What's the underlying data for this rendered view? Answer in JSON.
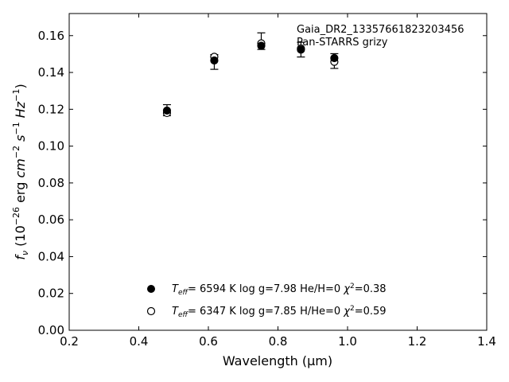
{
  "chart_data": {
    "type": "scatter",
    "xlabel": "Wavelength (μm)",
    "ylabel_parts": {
      "f": "f",
      "nu": "ν",
      "open": " (10",
      "exp1": "−26",
      "erg": " erg ",
      "cm": "cm",
      "exp2": "−2",
      "s": " s",
      "exp3": "−1",
      "hz": " Hz",
      "exp4": "−1",
      "close": ")"
    },
    "xlim": [
      0.2,
      1.4
    ],
    "ylim": [
      0.0,
      0.172
    ],
    "xticks": [
      0.2,
      0.4,
      0.6,
      0.8,
      1.0,
      1.2,
      1.4
    ],
    "xtick_labels": [
      "0.2",
      "0.4",
      "0.6",
      "0.8",
      "1.0",
      "1.2",
      "1.4"
    ],
    "yticks": [
      0.0,
      0.02,
      0.04,
      0.06,
      0.08,
      0.1,
      0.12,
      0.14,
      0.16
    ],
    "ytick_labels": [
      "0.00",
      "0.02",
      "0.04",
      "0.06",
      "0.08",
      "0.10",
      "0.12",
      "0.14",
      "0.16"
    ],
    "grid": false,
    "annotations": [
      "Gaia_DR2_13357661823203456",
      "Pan-STARRS grizy"
    ],
    "observed": [
      {
        "x": 0.481,
        "y": 0.1195,
        "err": 0.003
      },
      {
        "x": 0.617,
        "y": 0.1457,
        "err": 0.004
      },
      {
        "x": 0.752,
        "y": 0.157,
        "err": 0.0045
      },
      {
        "x": 0.866,
        "y": 0.1524,
        "err": 0.004
      },
      {
        "x": 0.962,
        "y": 0.1462,
        "err": 0.004
      }
    ],
    "series": [
      {
        "marker": "filled",
        "x": [
          0.481,
          0.617,
          0.752,
          0.866,
          0.962
        ],
        "y": [
          0.1193,
          0.1465,
          0.1545,
          0.1524,
          0.1478
        ]
      },
      {
        "marker": "open",
        "x": [
          0.481,
          0.617,
          0.752,
          0.866,
          0.962
        ],
        "y": [
          0.118,
          0.1485,
          0.1558,
          0.153,
          0.1458
        ]
      }
    ],
    "legend": {
      "placement": "lower-center",
      "entries": [
        {
          "marker": "filled",
          "teff_label": "T",
          "teff_sub": "eff",
          "text": "=  6594 K  log g=7.98  He/H=0  ",
          "chi": "χ",
          "chi_exp": "2",
          "chi_val": "=0.38"
        },
        {
          "marker": "open",
          "teff_label": "T",
          "teff_sub": "eff",
          "text": "=  6347 K  log g=7.85  H/He=0  ",
          "chi": "χ",
          "chi_exp": "2",
          "chi_val": "=0.59"
        }
      ]
    }
  }
}
